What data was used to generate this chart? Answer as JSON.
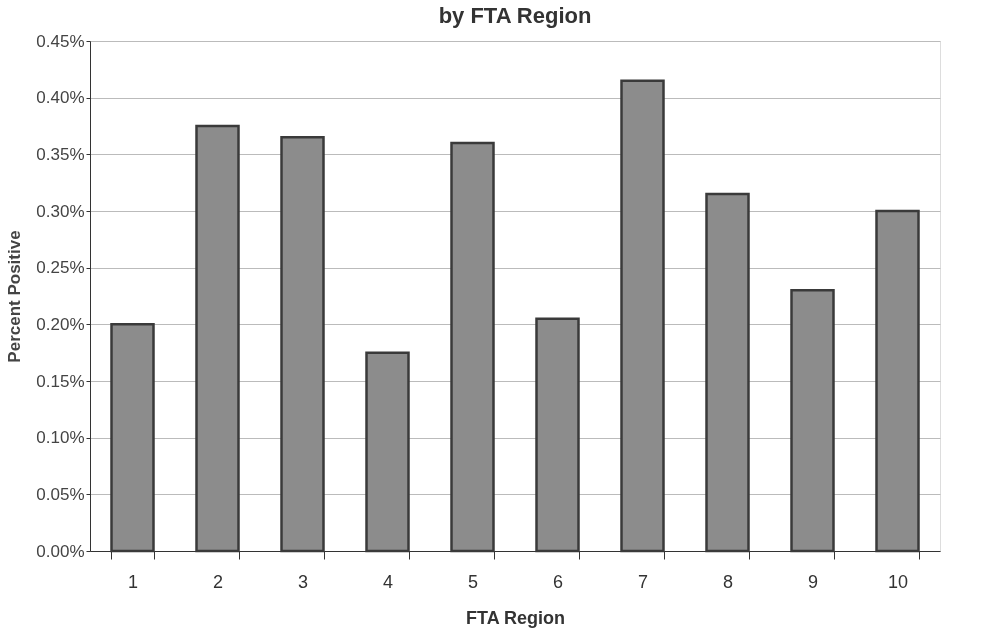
{
  "chart_data": {
    "type": "bar",
    "title": "by FTA Region",
    "xlabel": "FTA Region",
    "ylabel": "Percent Positive",
    "categories": [
      "1",
      "2",
      "3",
      "4",
      "5",
      "6",
      "7",
      "8",
      "9",
      "10"
    ],
    "values": [
      0.2,
      0.375,
      0.365,
      0.175,
      0.36,
      0.205,
      0.415,
      0.315,
      0.23,
      0.3
    ],
    "color": "#8c8c8c",
    "ylim": [
      0,
      0.45
    ],
    "yticks": [
      {
        "value": 0,
        "label": "0.00%"
      },
      {
        "value": 0.05,
        "label": "0.05%"
      },
      {
        "value": 0.1,
        "label": "0.10%"
      },
      {
        "value": 0.15,
        "label": "0.15%"
      },
      {
        "value": 0.2,
        "label": "0.20%"
      },
      {
        "value": 0.25,
        "label": "0.25%"
      },
      {
        "value": 0.3,
        "label": "0.30%"
      },
      {
        "value": 0.35,
        "label": "0.35%"
      },
      {
        "value": 0.4,
        "label": "0.40%"
      },
      {
        "value": 0.45,
        "label": "0.45%"
      }
    ],
    "grid": "y"
  }
}
